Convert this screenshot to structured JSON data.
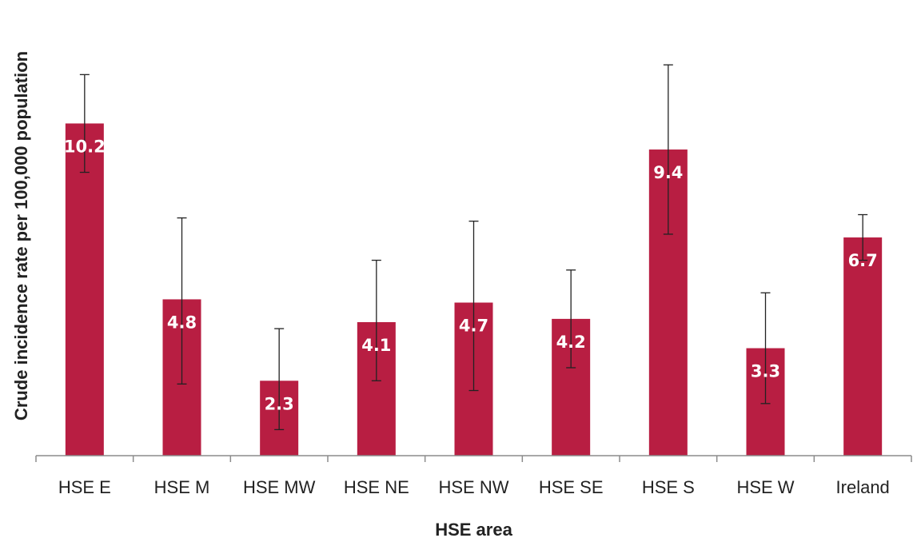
{
  "chart_data": {
    "type": "bar",
    "title": "",
    "xlabel": "HSE area",
    "ylabel": "Crude incidence rate per 100,000 population",
    "categories": [
      "HSE E",
      "HSE M",
      "HSE MW",
      "HSE NE",
      "HSE NW",
      "HSE SE",
      "HSE S",
      "HSE W",
      "Ireland"
    ],
    "values": [
      10.2,
      4.8,
      2.3,
      4.1,
      4.7,
      4.2,
      9.4,
      3.3,
      6.7
    ],
    "data_labels": [
      "10.2",
      "4.8",
      "2.3",
      "4.1",
      "4.7",
      "4.2",
      "9.4",
      "3.3",
      "6.7"
    ],
    "error_upper": [
      11.7,
      7.3,
      3.9,
      6.0,
      7.2,
      5.7,
      12.0,
      5.0,
      7.4
    ],
    "error_lower": [
      8.7,
      2.2,
      0.8,
      2.3,
      2.0,
      2.7,
      6.8,
      1.6,
      6.0
    ],
    "ylim": [
      0,
      13.5
    ],
    "grid": false,
    "legend": "none",
    "bar_color": "#b81e42"
  }
}
